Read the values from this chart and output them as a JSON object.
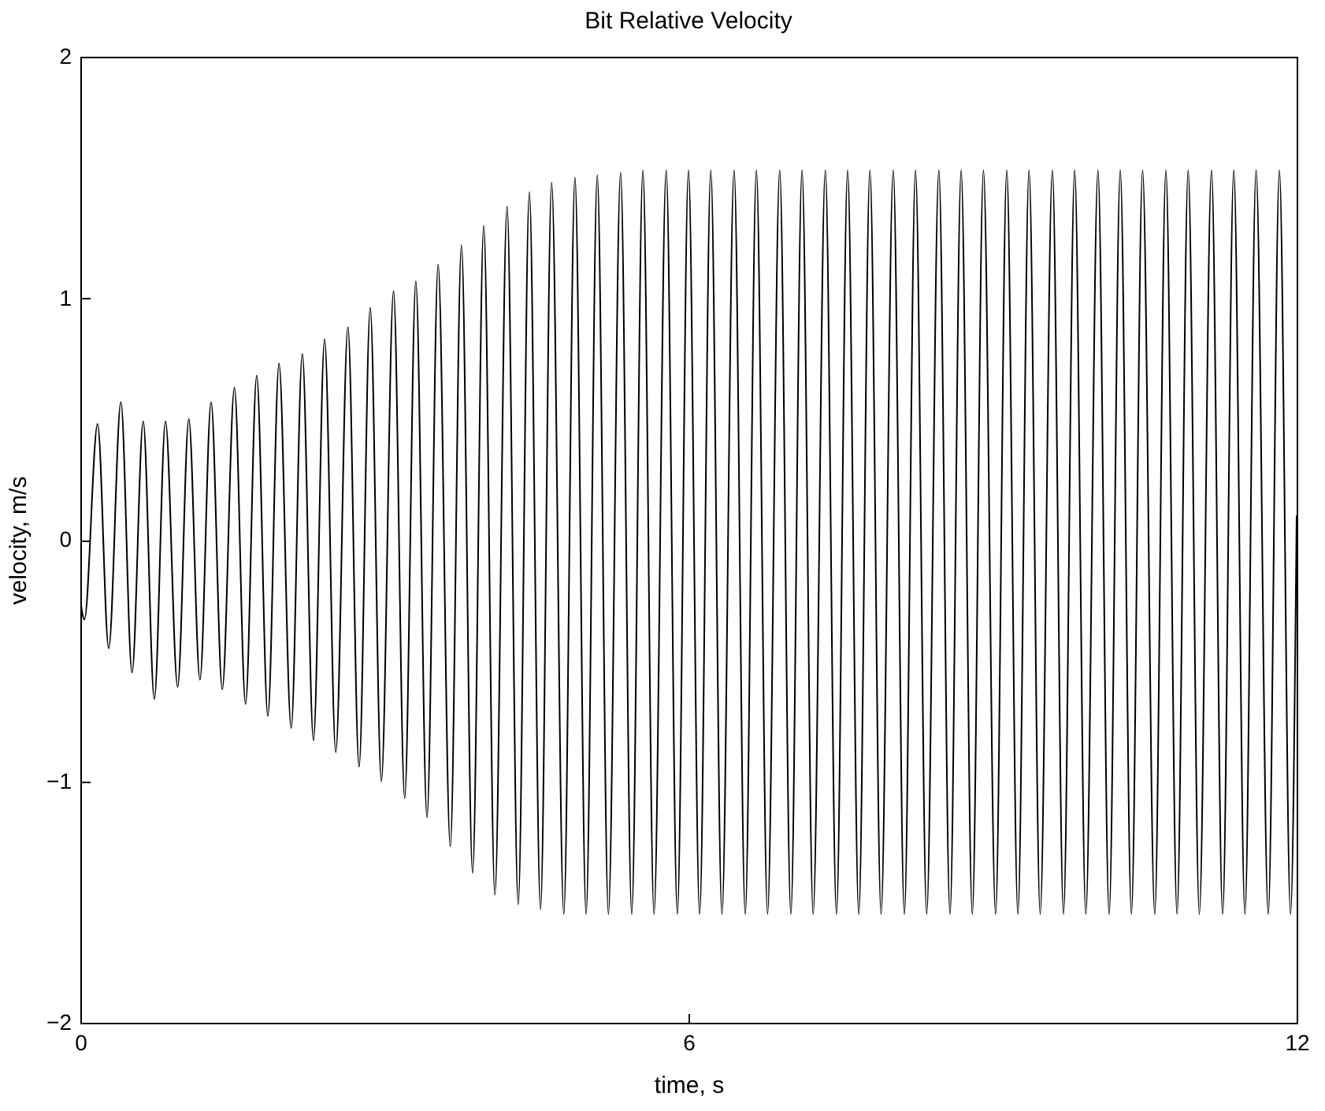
{
  "chart_data": {
    "type": "line",
    "title": "Bit Relative Velocity",
    "xlabel": "time, s",
    "ylabel": "velocity, m/s",
    "x": [
      0,
      0.04,
      0.17,
      0.28,
      0.4,
      0.51,
      0.62,
      0.73,
      0.84,
      0.96,
      1.07,
      1.18,
      1.29,
      1.4,
      1.52,
      1.63,
      1.74,
      1.85,
      1.96,
      2.08,
      2.19,
      2.3,
      2.41,
      2.52,
      2.64,
      2.75,
      2.86,
      2.97,
      3.09,
      3.2,
      3.31,
      3.42,
      3.53,
      3.65,
      3.76,
      3.87,
      3.98,
      4.09,
      4.21,
      4.32,
      4.43,
      4.54,
      4.65,
      4.77,
      4.88,
      4.99,
      5.1,
      5.21,
      5.33,
      5.44,
      5.55,
      5.66,
      5.78,
      5.89,
      6.0,
      6.11,
      6.22,
      6.33,
      6.45,
      6.56,
      6.67,
      6.78,
      6.9,
      7.01,
      7.12,
      7.23,
      7.35,
      7.46,
      7.57,
      7.68,
      7.79,
      7.9,
      8.02,
      8.13,
      8.24,
      8.35,
      8.47,
      8.58,
      8.69,
      8.8,
      8.91,
      9.03,
      9.14,
      9.25,
      9.36,
      9.47,
      9.59,
      9.7,
      9.81,
      9.92,
      10.04,
      10.15,
      10.26,
      10.37,
      10.48,
      10.6,
      10.71,
      10.82,
      10.93,
      11.04,
      11.16,
      11.27,
      11.38,
      11.49,
      11.6,
      11.72,
      11.83,
      11.94,
      12
    ],
    "series": [
      {
        "color": "#000000",
        "values": [
          -0.25,
          -0.33,
          0.48,
          -0.45,
          0.57,
          -0.55,
          0.49,
          -0.66,
          0.49,
          -0.61,
          0.5,
          -0.58,
          0.57,
          -0.62,
          0.63,
          -0.68,
          0.68,
          -0.73,
          0.73,
          -0.78,
          0.77,
          -0.83,
          0.83,
          -0.88,
          0.88,
          -0.94,
          0.96,
          -1.0,
          1.03,
          -1.07,
          1.07,
          -1.15,
          1.14,
          -1.27,
          1.22,
          -1.38,
          1.3,
          -1.47,
          1.38,
          -1.51,
          1.44,
          -1.53,
          1.48,
          -1.55,
          1.5,
          -1.55,
          1.51,
          -1.55,
          1.52,
          -1.55,
          1.53,
          -1.55,
          1.53,
          -1.55,
          1.53,
          -1.55,
          1.53,
          -1.55,
          1.53,
          -1.55,
          1.53,
          -1.55,
          1.53,
          -1.55,
          1.53,
          -1.55,
          1.53,
          -1.55,
          1.53,
          -1.55,
          1.53,
          -1.55,
          1.53,
          -1.55,
          1.53,
          -1.55,
          1.53,
          -1.55,
          1.53,
          -1.55,
          1.53,
          -1.55,
          1.53,
          -1.55,
          1.53,
          -1.55,
          1.53,
          -1.55,
          1.53,
          -1.55,
          1.53,
          -1.55,
          1.53,
          -1.55,
          1.53,
          -1.55,
          1.53,
          -1.55,
          1.53,
          -1.55,
          1.53,
          -1.55,
          1.53,
          -1.55,
          1.53,
          -1.55,
          1.53,
          -1.55,
          0.1
        ]
      }
    ],
    "xlim": [
      0,
      12
    ],
    "xticks": [
      0,
      6,
      12
    ],
    "ylim": [
      -2,
      2
    ],
    "yticks": [
      -2,
      -1,
      0,
      1,
      2
    ],
    "grid": false,
    "marker": "none",
    "line_style": "solid"
  }
}
